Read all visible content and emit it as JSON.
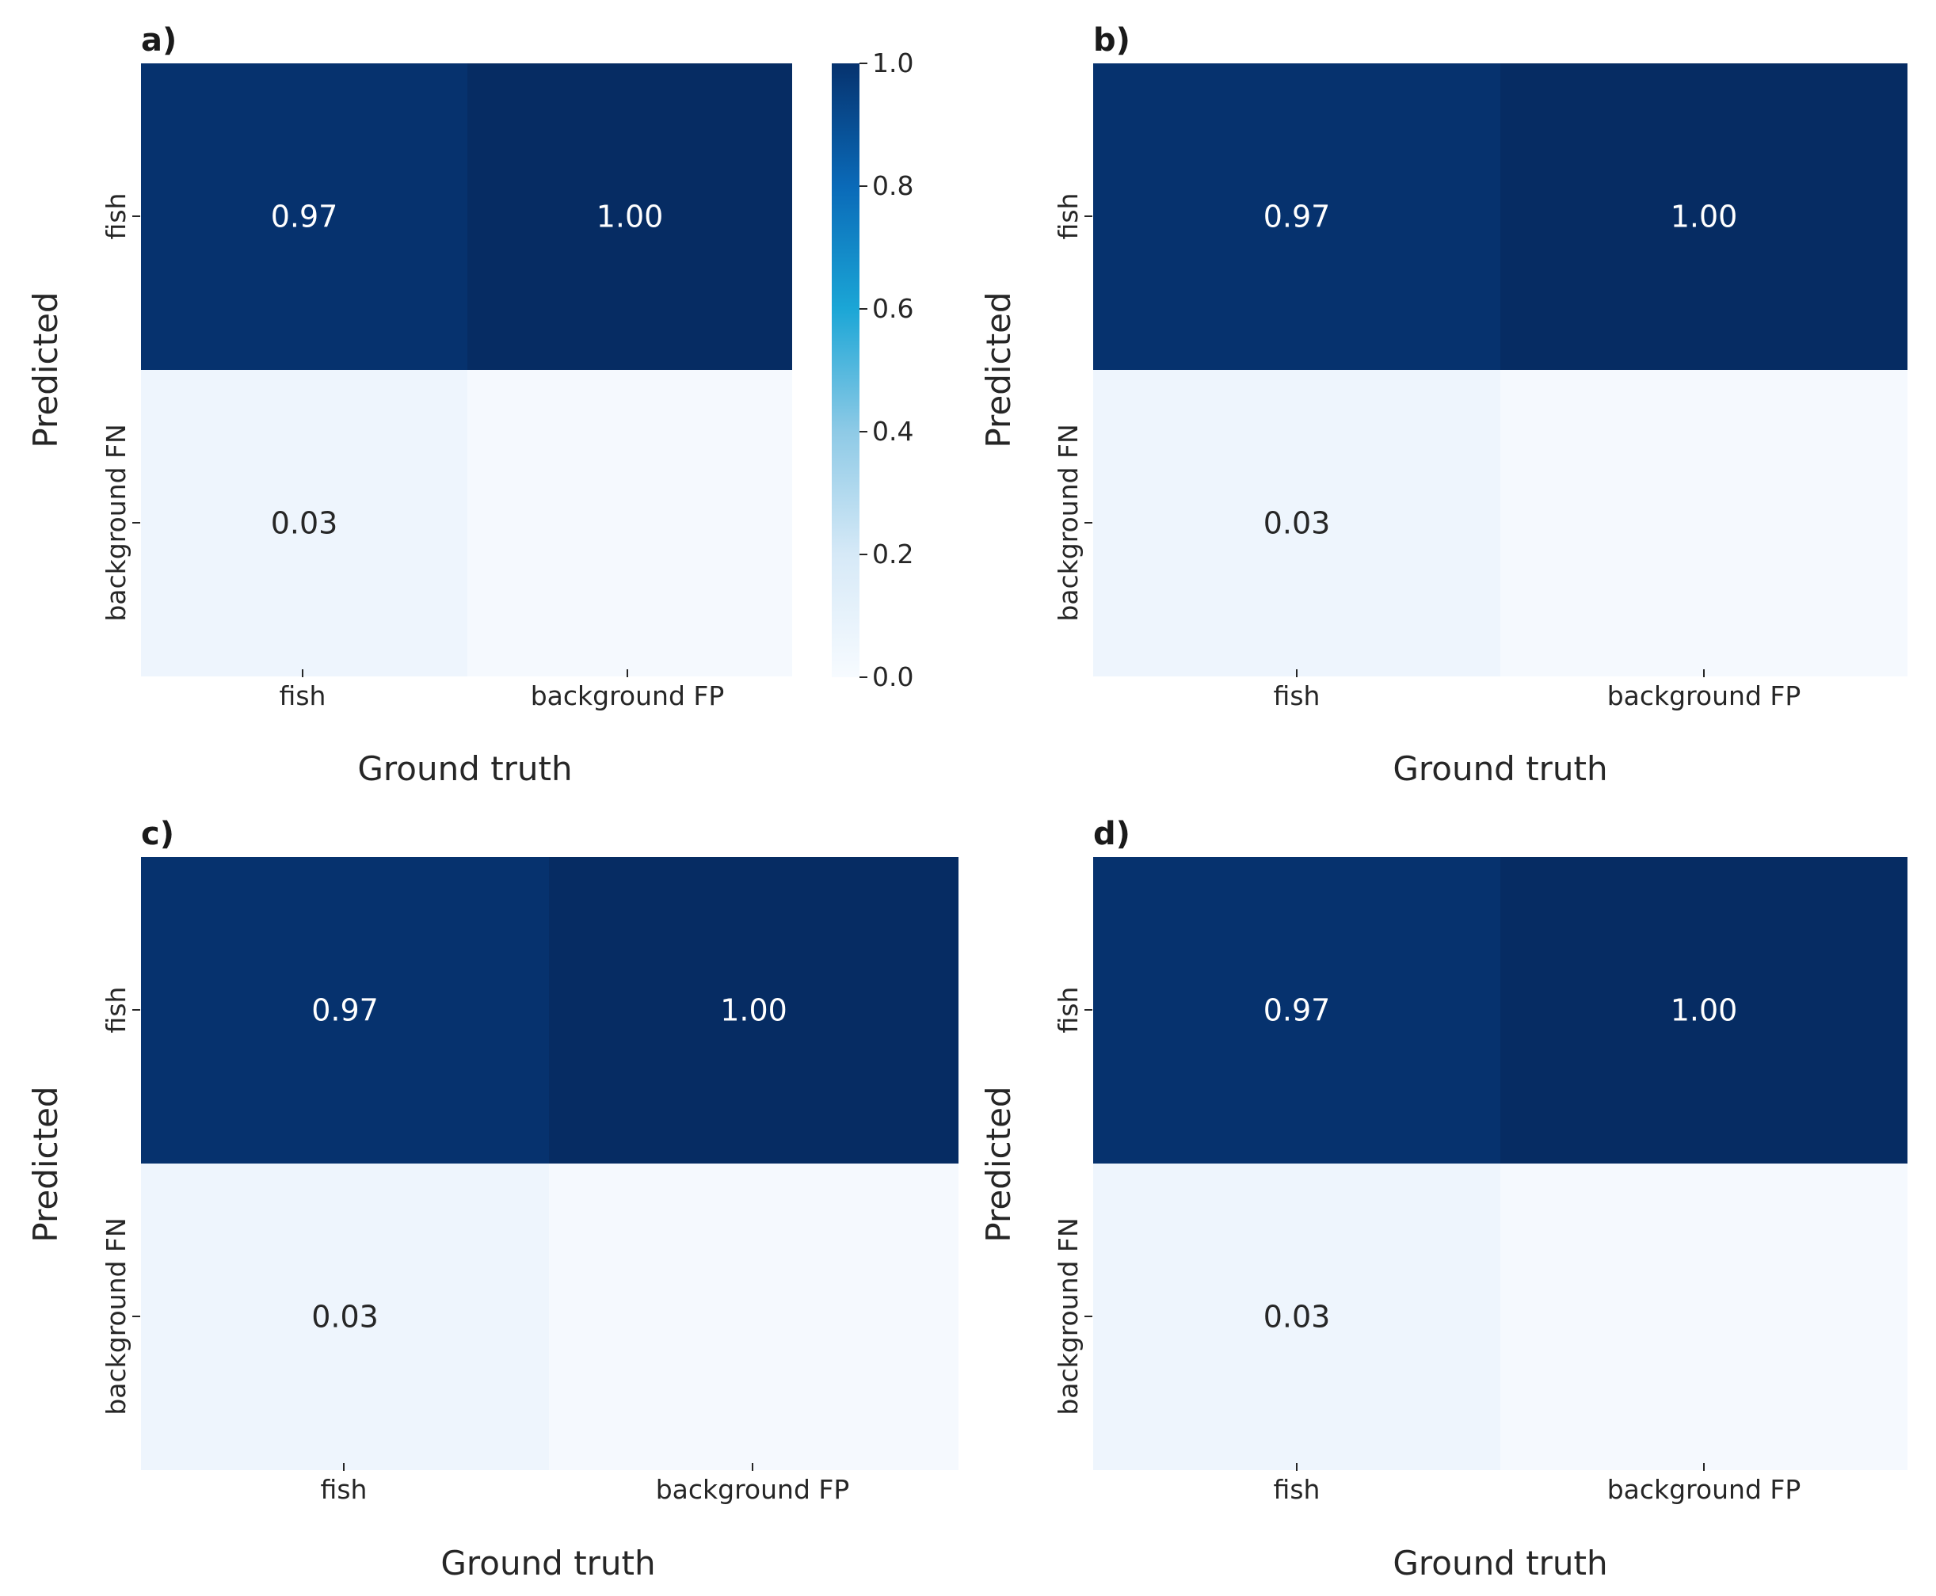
{
  "chart_data": [
    {
      "type": "heatmap",
      "panel": "a)",
      "xlabel": "Ground truth",
      "ylabel": "Predicted",
      "x_categories": [
        "fish",
        "background FP"
      ],
      "y_categories": [
        "fish",
        "background FN"
      ],
      "values": [
        [
          0.97,
          1.0
        ],
        [
          0.03,
          null
        ]
      ],
      "annotations": [
        [
          "0.97",
          "1.00"
        ],
        [
          "0.03",
          ""
        ]
      ]
    },
    {
      "type": "heatmap",
      "panel": "b)",
      "xlabel": "Ground truth",
      "ylabel": "Predicted",
      "x_categories": [
        "fish",
        "background FP"
      ],
      "y_categories": [
        "fish",
        "background FN"
      ],
      "values": [
        [
          0.97,
          1.0
        ],
        [
          0.03,
          null
        ]
      ],
      "annotations": [
        [
          "0.97",
          "1.00"
        ],
        [
          "0.03",
          ""
        ]
      ]
    },
    {
      "type": "heatmap",
      "panel": "c)",
      "xlabel": "Ground truth",
      "ylabel": "Predicted",
      "x_categories": [
        "fish",
        "background FP"
      ],
      "y_categories": [
        "fish",
        "background FN"
      ],
      "values": [
        [
          0.97,
          1.0
        ],
        [
          0.03,
          null
        ]
      ],
      "annotations": [
        [
          "0.97",
          "1.00"
        ],
        [
          "0.03",
          ""
        ]
      ]
    },
    {
      "type": "heatmap",
      "panel": "d)",
      "xlabel": "Ground truth",
      "ylabel": "Predicted",
      "x_categories": [
        "fish",
        "background FP"
      ],
      "y_categories": [
        "fish",
        "background FN"
      ],
      "values": [
        [
          0.97,
          1.0
        ],
        [
          0.03,
          null
        ]
      ],
      "annotations": [
        [
          "0.97",
          "1.00"
        ],
        [
          "0.03",
          ""
        ]
      ]
    }
  ],
  "colorbar": {
    "colormap": "Blues",
    "range": [
      0,
      1
    ],
    "ticks": [
      0.0,
      0.2,
      0.4,
      0.6,
      0.8,
      1.0
    ],
    "tick_labels": [
      "0.0",
      "0.2",
      "0.4",
      "0.6",
      "0.8",
      "1.0"
    ]
  },
  "colors": {
    "dark_cell": "#06326e",
    "darkest_cell": "#062c63",
    "light_cell": "#eef5fd",
    "empty_cell": "#f5f9fe",
    "text_on_dark": "#ffffff",
    "text_on_light": "#262626"
  }
}
